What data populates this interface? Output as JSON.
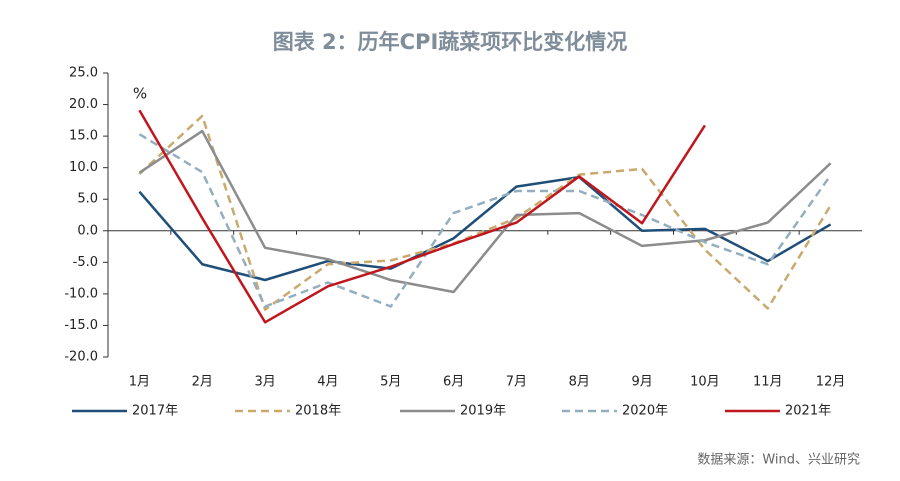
{
  "chart_data": {
    "type": "line",
    "title": "图表 2：历年CPI蔬菜项环比变化情况",
    "y_unit": "%",
    "source": "数据来源：Wind、兴业研究",
    "categories": [
      "1月",
      "2月",
      "3月",
      "4月",
      "5月",
      "6月",
      "7月",
      "8月",
      "9月",
      "10月",
      "11月",
      "12月"
    ],
    "series": [
      {
        "name": "2017年",
        "color": "#1f4e79",
        "dashed": false,
        "values": [
          6.2,
          -5.3,
          -7.8,
          -4.8,
          -6.0,
          -1.2,
          7.0,
          8.5,
          0.0,
          0.3,
          -4.8,
          1.0
        ]
      },
      {
        "name": "2018年",
        "color": "#c9a96e",
        "dashed": true,
        "values": [
          9.0,
          18.2,
          -12.5,
          -5.3,
          -4.7,
          -2.0,
          2.0,
          8.9,
          9.8,
          -3.0,
          -12.3,
          4.0
        ]
      },
      {
        "name": "2019年",
        "color": "#8c8c8c",
        "dashed": false,
        "values": [
          9.2,
          15.8,
          -2.7,
          -4.5,
          -7.8,
          -9.7,
          2.5,
          2.8,
          -2.4,
          -1.5,
          1.3,
          10.7
        ]
      },
      {
        "name": "2020年",
        "color": "#93aebf",
        "dashed": true,
        "values": [
          15.3,
          9.3,
          -12.0,
          -8.2,
          -12.0,
          2.8,
          6.3,
          6.3,
          2.5,
          -1.8,
          -5.3,
          8.8
        ]
      },
      {
        "name": "2021年",
        "color": "#c0161d",
        "dashed": false,
        "values": [
          19.1,
          2.0,
          -14.5,
          -8.8,
          -5.7,
          -2.1,
          1.3,
          8.6,
          1.2,
          16.7,
          null,
          null
        ]
      }
    ],
    "ylim": [
      -20,
      25
    ],
    "yticks": [
      {
        "value": -20,
        "label": "-20.0"
      },
      {
        "value": -15,
        "label": "-15.0"
      },
      {
        "value": -10,
        "label": "-10.0"
      },
      {
        "value": -5,
        "label": "-5.0"
      },
      {
        "value": 0,
        "label": "0.0"
      },
      {
        "value": 5,
        "label": "5.0"
      },
      {
        "value": 10,
        "label": "10.0"
      },
      {
        "value": 15,
        "label": "15.0"
      },
      {
        "value": 20,
        "label": "20.0"
      },
      {
        "value": 25,
        "label": "25.0"
      }
    ],
    "legend": "bottom"
  }
}
